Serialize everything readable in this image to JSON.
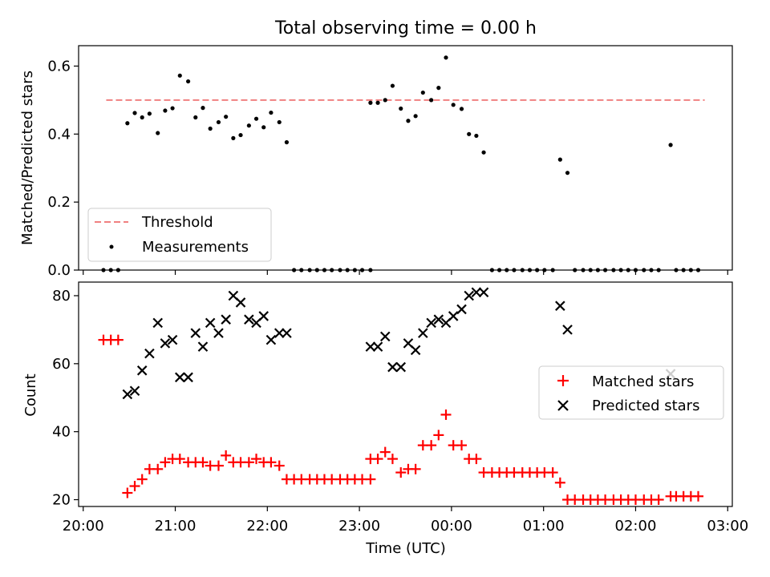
{
  "figure": {
    "title": "Total observing time = 0.00 h"
  },
  "chart_data": [
    {
      "type": "scatter",
      "ylabel": "Matched/Predicted stars",
      "xlim": [
        -0.05,
        7.05
      ],
      "ylim": [
        0.0,
        0.66
      ],
      "yticks": [
        "0.0",
        "0.2",
        "0.4",
        "0.6"
      ],
      "grid": false,
      "legend_position": "lower-left",
      "threshold": {
        "name": "Threshold",
        "value": 0.5,
        "x_range": [
          0.25,
          6.75
        ],
        "color": "#f08080"
      },
      "series": [
        {
          "name": "Measurements",
          "color": "#000000",
          "points": [
            [
              0.22,
              0.0
            ],
            [
              0.3,
              0.0
            ],
            [
              0.38,
              0.0
            ],
            [
              0.48,
              0.432
            ],
            [
              0.56,
              0.462
            ],
            [
              0.64,
              0.449
            ],
            [
              0.72,
              0.46
            ],
            [
              0.81,
              0.403
            ],
            [
              0.89,
              0.469
            ],
            [
              0.97,
              0.476
            ],
            [
              1.05,
              0.572
            ],
            [
              1.14,
              0.555
            ],
            [
              1.22,
              0.449
            ],
            [
              1.3,
              0.477
            ],
            [
              1.38,
              0.416
            ],
            [
              1.47,
              0.435
            ],
            [
              1.55,
              0.451
            ],
            [
              1.63,
              0.388
            ],
            [
              1.71,
              0.397
            ],
            [
              1.8,
              0.425
            ],
            [
              1.88,
              0.445
            ],
            [
              1.96,
              0.42
            ],
            [
              2.04,
              0.463
            ],
            [
              2.13,
              0.435
            ],
            [
              2.21,
              0.376
            ],
            [
              2.29,
              0.0
            ],
            [
              2.37,
              0.0
            ],
            [
              2.46,
              0.0
            ],
            [
              2.54,
              0.0
            ],
            [
              2.62,
              0.0
            ],
            [
              2.7,
              0.0
            ],
            [
              2.79,
              0.0
            ],
            [
              2.87,
              0.0
            ],
            [
              2.95,
              0.0
            ],
            [
              3.03,
              0.0
            ],
            [
              3.12,
              0.0
            ],
            [
              3.12,
              0.492
            ],
            [
              3.2,
              0.492
            ],
            [
              3.28,
              0.5
            ],
            [
              3.36,
              0.542
            ],
            [
              3.45,
              0.475
            ],
            [
              3.53,
              0.439
            ],
            [
              3.61,
              0.453
            ],
            [
              3.69,
              0.522
            ],
            [
              3.78,
              0.5
            ],
            [
              3.86,
              0.536
            ],
            [
              3.94,
              0.625
            ],
            [
              4.02,
              0.486
            ],
            [
              4.11,
              0.474
            ],
            [
              4.19,
              0.4
            ],
            [
              4.27,
              0.395
            ],
            [
              4.35,
              0.346
            ],
            [
              4.44,
              0.0
            ],
            [
              4.52,
              0.0
            ],
            [
              4.6,
              0.0
            ],
            [
              4.68,
              0.0
            ],
            [
              4.77,
              0.0
            ],
            [
              4.85,
              0.0
            ],
            [
              4.93,
              0.0
            ],
            [
              5.01,
              0.0
            ],
            [
              5.1,
              0.0
            ],
            [
              5.18,
              0.325
            ],
            [
              5.26,
              0.286
            ],
            [
              5.34,
              0.0
            ],
            [
              5.43,
              0.0
            ],
            [
              5.51,
              0.0
            ],
            [
              5.59,
              0.0
            ],
            [
              5.67,
              0.0
            ],
            [
              5.76,
              0.0
            ],
            [
              5.84,
              0.0
            ],
            [
              5.92,
              0.0
            ],
            [
              6.0,
              0.0
            ],
            [
              6.09,
              0.0
            ],
            [
              6.17,
              0.0
            ],
            [
              6.25,
              0.0
            ],
            [
              6.38,
              0.368
            ],
            [
              6.44,
              0.0
            ],
            [
              6.52,
              0.0
            ],
            [
              6.6,
              0.0
            ],
            [
              6.68,
              0.0
            ]
          ]
        }
      ]
    },
    {
      "type": "scatter",
      "xlabel": "Time (UTC)",
      "ylabel": "Count",
      "xlim": [
        -0.05,
        7.05
      ],
      "ylim": [
        18,
        84
      ],
      "xticks": [
        "20:00",
        "21:00",
        "22:00",
        "23:00",
        "00:00",
        "01:00",
        "02:00",
        "03:00"
      ],
      "yticks": [
        "20",
        "40",
        "60",
        "80"
      ],
      "grid": false,
      "legend_position": "center-right",
      "series": [
        {
          "name": "Matched stars",
          "marker": "plus",
          "color": "#ff0000",
          "points": [
            [
              0.22,
              67
            ],
            [
              0.3,
              67
            ],
            [
              0.38,
              67
            ],
            [
              0.48,
              22
            ],
            [
              0.56,
              24
            ],
            [
              0.64,
              26
            ],
            [
              0.72,
              29
            ],
            [
              0.81,
              29
            ],
            [
              0.89,
              31
            ],
            [
              0.97,
              32
            ],
            [
              1.05,
              32
            ],
            [
              1.14,
              31
            ],
            [
              1.22,
              31
            ],
            [
              1.3,
              31
            ],
            [
              1.38,
              30
            ],
            [
              1.47,
              30
            ],
            [
              1.55,
              33
            ],
            [
              1.63,
              31
            ],
            [
              1.71,
              31
            ],
            [
              1.8,
              31
            ],
            [
              1.88,
              32
            ],
            [
              1.96,
              31
            ],
            [
              2.04,
              31
            ],
            [
              2.13,
              30
            ],
            [
              2.21,
              26
            ],
            [
              2.29,
              26
            ],
            [
              2.37,
              26
            ],
            [
              2.46,
              26
            ],
            [
              2.54,
              26
            ],
            [
              2.62,
              26
            ],
            [
              2.7,
              26
            ],
            [
              2.79,
              26
            ],
            [
              2.87,
              26
            ],
            [
              2.95,
              26
            ],
            [
              3.03,
              26
            ],
            [
              3.12,
              26
            ],
            [
              3.12,
              32
            ],
            [
              3.2,
              32
            ],
            [
              3.28,
              34
            ],
            [
              3.36,
              32
            ],
            [
              3.45,
              28
            ],
            [
              3.53,
              29
            ],
            [
              3.61,
              29
            ],
            [
              3.69,
              36
            ],
            [
              3.78,
              36
            ],
            [
              3.86,
              39
            ],
            [
              3.94,
              45
            ],
            [
              4.02,
              36
            ],
            [
              4.11,
              36
            ],
            [
              4.19,
              32
            ],
            [
              4.27,
              32
            ],
            [
              4.35,
              28
            ],
            [
              4.44,
              28
            ],
            [
              4.52,
              28
            ],
            [
              4.6,
              28
            ],
            [
              4.68,
              28
            ],
            [
              4.77,
              28
            ],
            [
              4.85,
              28
            ],
            [
              4.93,
              28
            ],
            [
              5.01,
              28
            ],
            [
              5.1,
              28
            ],
            [
              5.18,
              25
            ],
            [
              5.26,
              20
            ],
            [
              5.34,
              20
            ],
            [
              5.43,
              20
            ],
            [
              5.51,
              20
            ],
            [
              5.59,
              20
            ],
            [
              5.67,
              20
            ],
            [
              5.76,
              20
            ],
            [
              5.84,
              20
            ],
            [
              5.92,
              20
            ],
            [
              6.0,
              20
            ],
            [
              6.09,
              20
            ],
            [
              6.17,
              20
            ],
            [
              6.25,
              20
            ],
            [
              6.38,
              21
            ],
            [
              6.44,
              21
            ],
            [
              6.52,
              21
            ],
            [
              6.6,
              21
            ],
            [
              6.68,
              21
            ]
          ]
        },
        {
          "name": "Predicted stars",
          "marker": "x",
          "color": "#000000",
          "points": [
            [
              0.48,
              51
            ],
            [
              0.56,
              52
            ],
            [
              0.64,
              58
            ],
            [
              0.72,
              63
            ],
            [
              0.81,
              72
            ],
            [
              0.89,
              66
            ],
            [
              0.97,
              67
            ],
            [
              1.05,
              56
            ],
            [
              1.14,
              56
            ],
            [
              1.22,
              69
            ],
            [
              1.3,
              65
            ],
            [
              1.38,
              72
            ],
            [
              1.47,
              69
            ],
            [
              1.55,
              73
            ],
            [
              1.63,
              80
            ],
            [
              1.71,
              78
            ],
            [
              1.8,
              73
            ],
            [
              1.88,
              72
            ],
            [
              1.96,
              74
            ],
            [
              2.04,
              67
            ],
            [
              2.13,
              69
            ],
            [
              2.21,
              69
            ],
            [
              3.12,
              65
            ],
            [
              3.2,
              65
            ],
            [
              3.28,
              68
            ],
            [
              3.36,
              59
            ],
            [
              3.45,
              59
            ],
            [
              3.53,
              66
            ],
            [
              3.61,
              64
            ],
            [
              3.69,
              69
            ],
            [
              3.78,
              72
            ],
            [
              3.86,
              73
            ],
            [
              3.94,
              72
            ],
            [
              4.02,
              74
            ],
            [
              4.11,
              76
            ],
            [
              4.19,
              80
            ],
            [
              4.27,
              81
            ],
            [
              4.35,
              81
            ],
            [
              5.18,
              77
            ],
            [
              5.26,
              70
            ],
            [
              6.38,
              57
            ]
          ]
        }
      ]
    }
  ]
}
